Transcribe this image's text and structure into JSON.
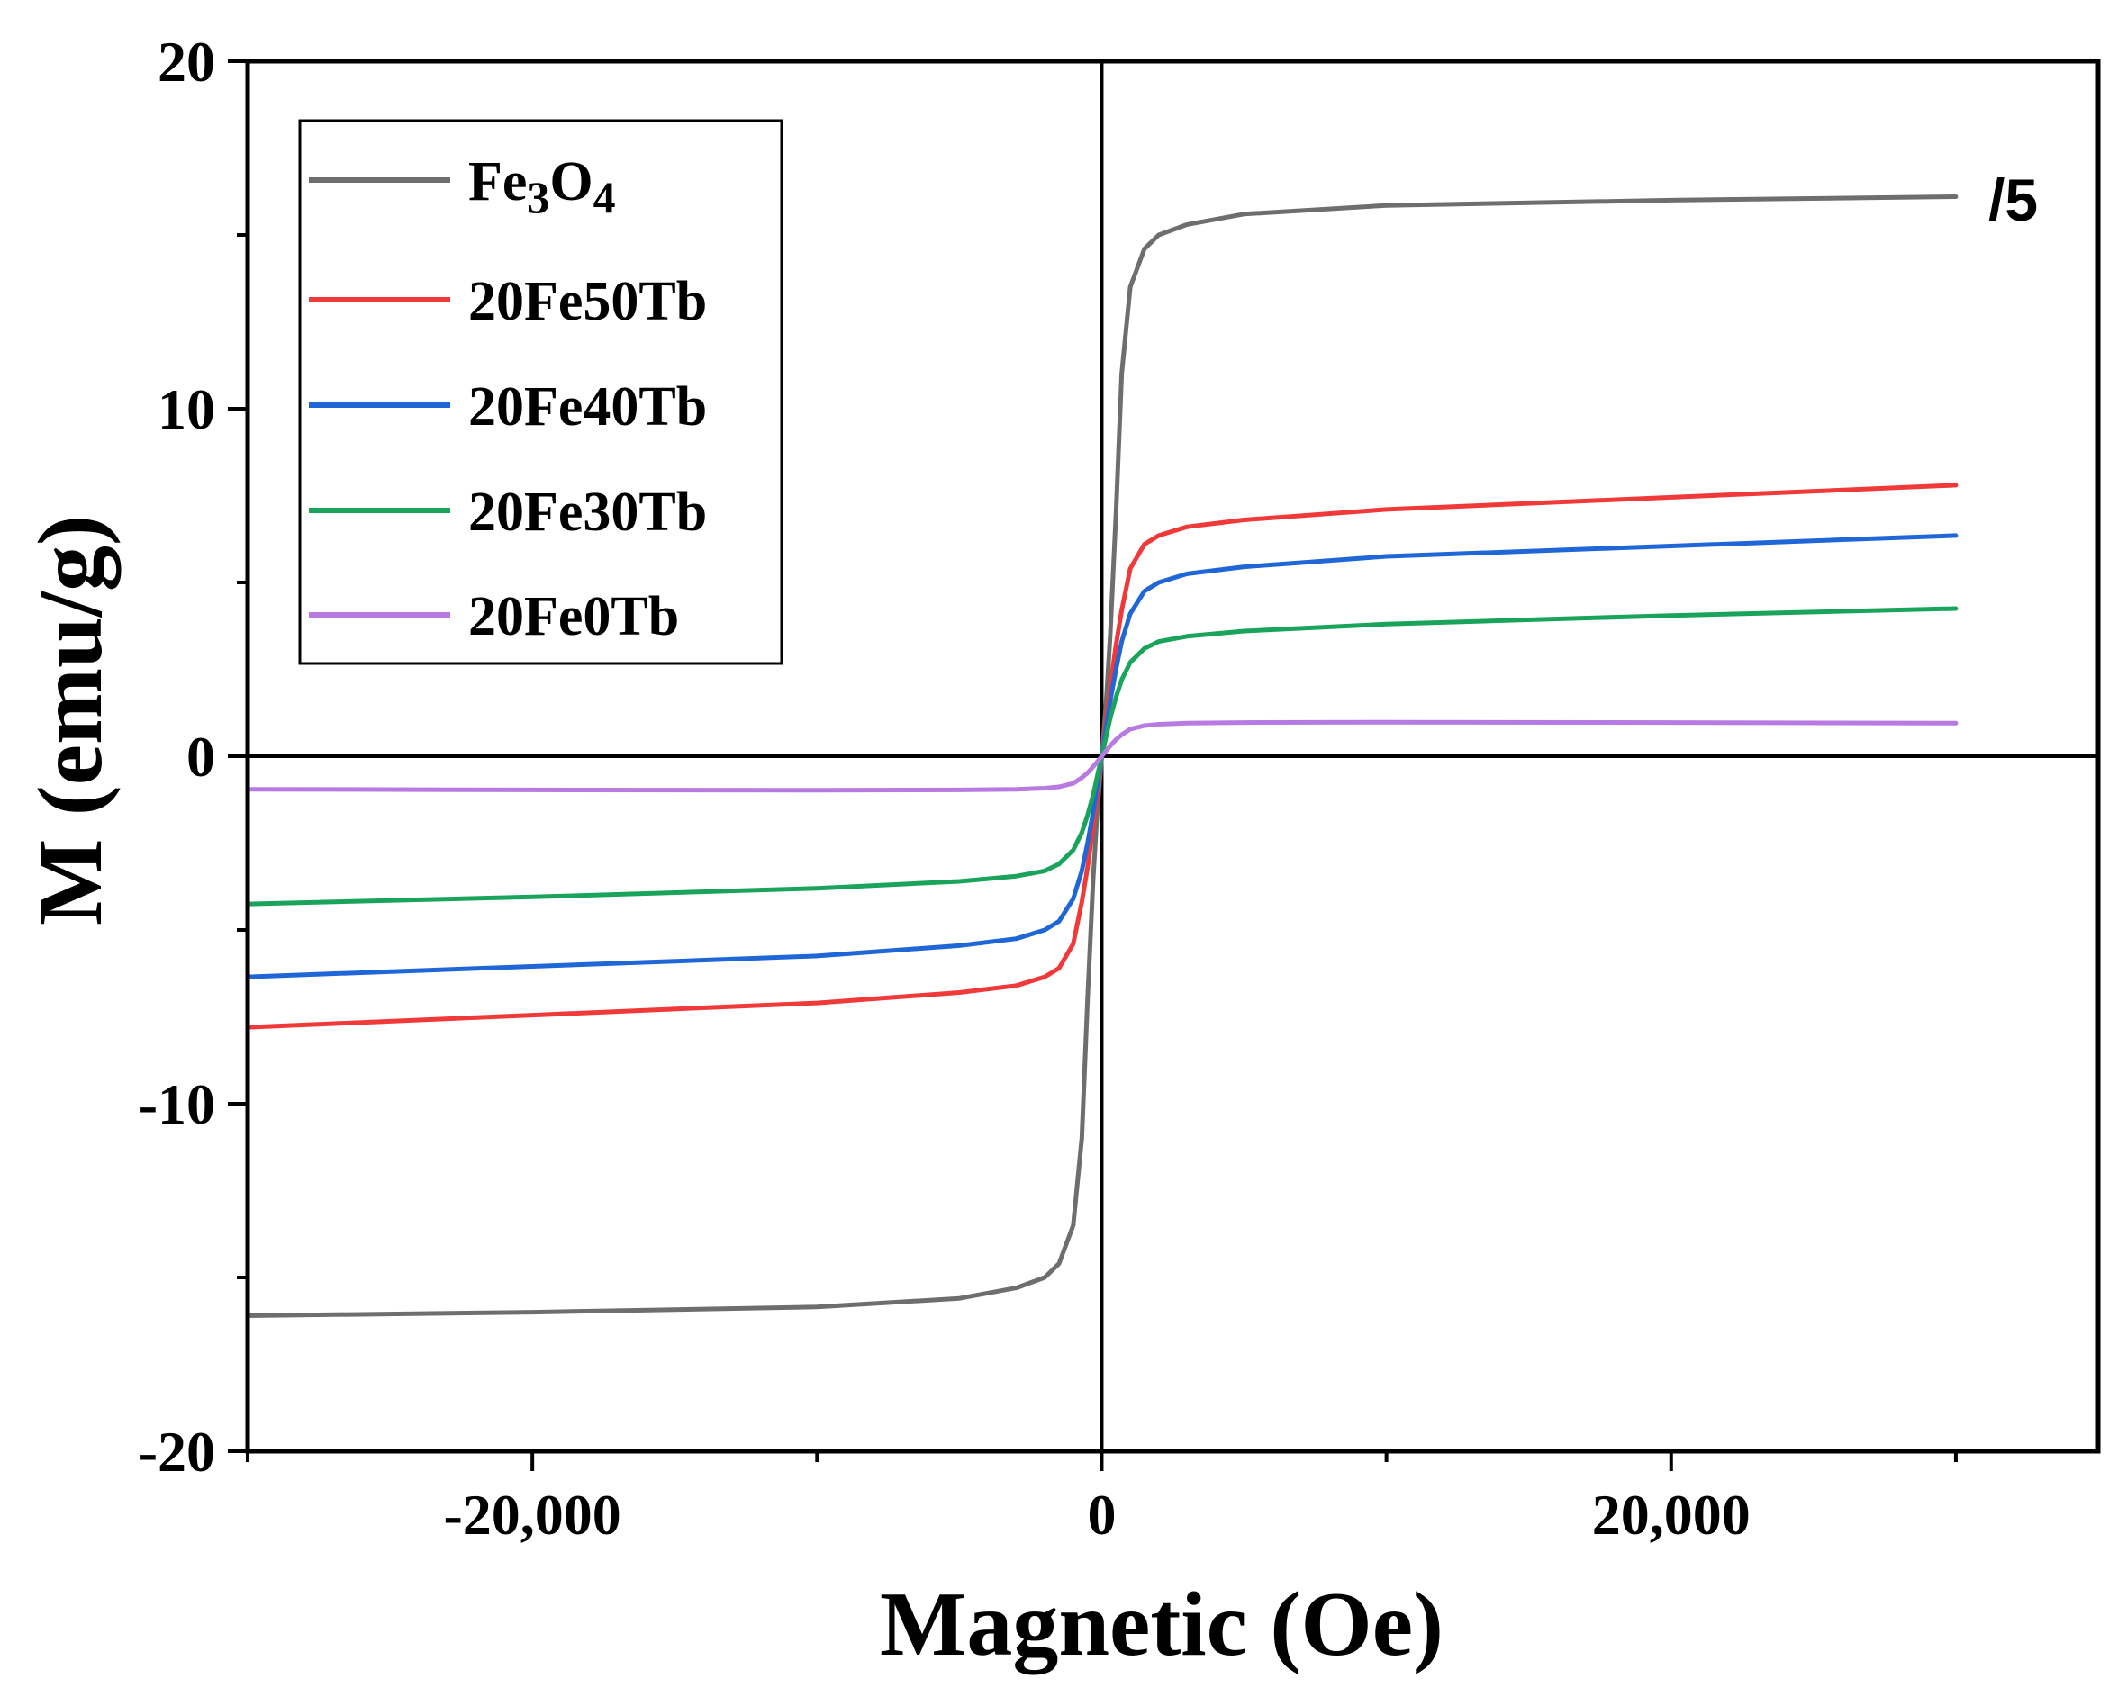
{
  "chart_data": {
    "type": "line",
    "title": "",
    "xlabel": "Magnetic (Oe)",
    "ylabel": "M (emu/g)",
    "xlim": [
      -30000,
      35000
    ],
    "ylim": [
      -20,
      20
    ],
    "x_ticks": [
      -20000,
      0,
      20000
    ],
    "x_tick_labels": [
      "-20,000",
      "0",
      "20,000"
    ],
    "y_ticks": [
      -20,
      -10,
      0,
      10,
      20
    ],
    "y_tick_labels": [
      "-20",
      "-10",
      "0",
      "10",
      "20"
    ],
    "legend_position": "top-left",
    "annotation": "/5",
    "x": [
      -30000,
      -20000,
      -10000,
      -5000,
      -3000,
      -2000,
      -1500,
      -1000,
      -700,
      -500,
      -300,
      -150,
      0,
      150,
      300,
      500,
      700,
      1000,
      1500,
      2000,
      3000,
      5000,
      10000,
      20000,
      30000
    ],
    "series": [
      {
        "name": "Fe3O4",
        "name_main": "Fe",
        "name_sub1": "3",
        "name_mid": "O",
        "name_sub2": "4",
        "color": "#6e6e6e",
        "values": [
          -16.1,
          -16.0,
          -15.85,
          -15.6,
          -15.3,
          -15.0,
          -14.6,
          -13.5,
          -11.0,
          -7.0,
          -3.5,
          -1.5,
          0,
          1.5,
          3.5,
          7.0,
          11.0,
          13.5,
          14.6,
          15.0,
          15.3,
          15.6,
          15.85,
          16.0,
          16.1
        ]
      },
      {
        "name": "20Fe50Tb",
        "color": "#f03a3a",
        "values": [
          -7.8,
          -7.45,
          -7.1,
          -6.8,
          -6.6,
          -6.35,
          -6.1,
          -5.4,
          -4.2,
          -3.2,
          -2.0,
          -1.0,
          0,
          1.0,
          2.0,
          3.2,
          4.2,
          5.4,
          6.1,
          6.35,
          6.6,
          6.8,
          7.1,
          7.45,
          7.8
        ]
      },
      {
        "name": "20Fe40Tb",
        "color": "#1f66d6",
        "values": [
          -6.35,
          -6.05,
          -5.75,
          -5.45,
          -5.25,
          -5.0,
          -4.75,
          -4.1,
          -3.3,
          -2.5,
          -1.6,
          -0.8,
          0,
          0.8,
          1.6,
          2.5,
          3.3,
          4.1,
          4.75,
          5.0,
          5.25,
          5.45,
          5.75,
          6.05,
          6.35
        ]
      },
      {
        "name": "20Fe30Tb",
        "color": "#1aa35a",
        "values": [
          -4.25,
          -4.05,
          -3.8,
          -3.6,
          -3.45,
          -3.3,
          -3.1,
          -2.7,
          -2.2,
          -1.7,
          -1.1,
          -0.55,
          0,
          0.55,
          1.1,
          1.7,
          2.2,
          2.7,
          3.1,
          3.3,
          3.45,
          3.6,
          3.8,
          4.05,
          4.25
        ]
      },
      {
        "name": "20Fe0Tb",
        "color": "#b77ae0",
        "values": [
          -0.95,
          -0.97,
          -0.98,
          -0.97,
          -0.95,
          -0.92,
          -0.88,
          -0.78,
          -0.62,
          -0.48,
          -0.3,
          -0.15,
          0,
          0.15,
          0.3,
          0.48,
          0.62,
          0.78,
          0.88,
          0.92,
          0.95,
          0.97,
          0.98,
          0.97,
          0.95
        ]
      }
    ]
  }
}
